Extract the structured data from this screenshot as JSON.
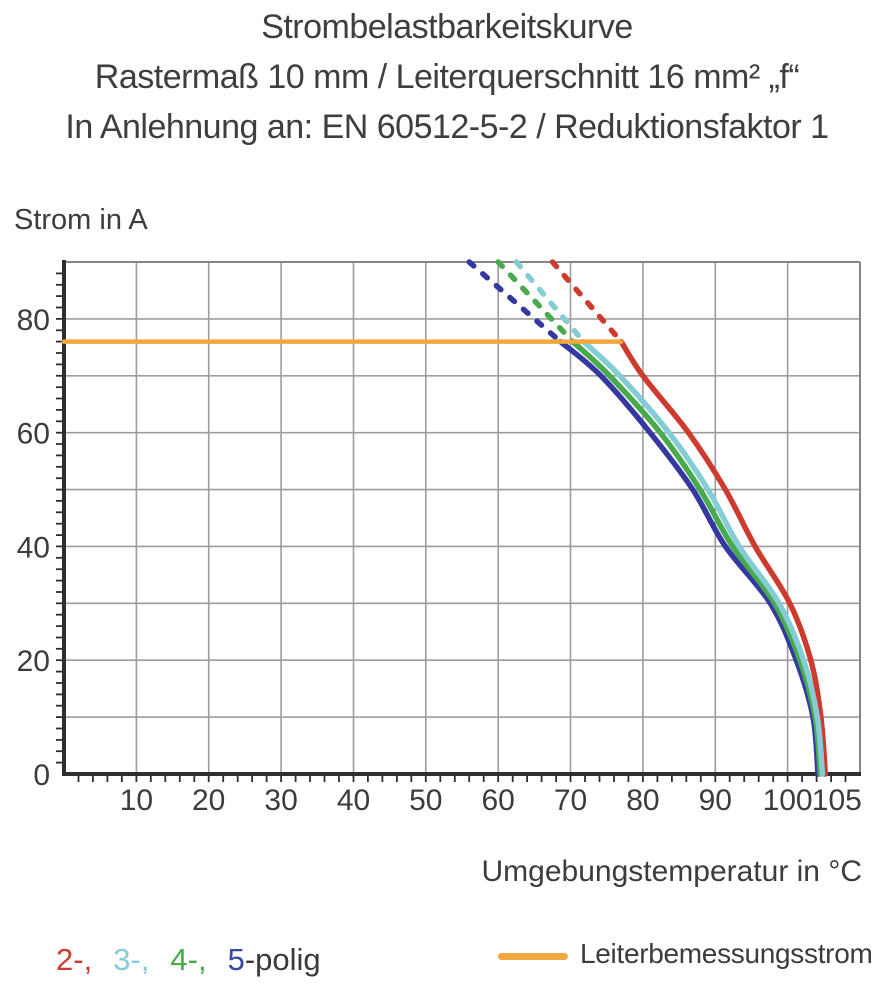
{
  "chart_data": {
    "type": "line",
    "title": "Strombelastbarkeitskurve",
    "subtitle_lines": [
      "Rastermaß 10 mm / Leiterquerschnitt 16 mm² „f“",
      "In Anlehnung an: EN 60512-5-2 / Reduktionsfaktor 1"
    ],
    "xlabel": "Umgebungstemperatur in °C",
    "ylabel": "Strom in A",
    "xlim": [
      0,
      110
    ],
    "ylim": [
      0,
      90
    ],
    "grid_step": 10,
    "minor_tick_step": 2,
    "grid_on": true,
    "x_ticks": [
      {
        "v": 10,
        "label": "10"
      },
      {
        "v": 20,
        "label": "20"
      },
      {
        "v": 30,
        "label": "30"
      },
      {
        "v": 40,
        "label": "40"
      },
      {
        "v": 50,
        "label": "50"
      },
      {
        "v": 60,
        "label": "60"
      },
      {
        "v": 70,
        "label": "70"
      },
      {
        "v": 80,
        "label": "80"
      },
      {
        "v": 90,
        "label": "90"
      },
      {
        "v": 100,
        "label": "100"
      },
      {
        "v": 105,
        "label": "105",
        "label_offset": 13
      }
    ],
    "y_ticks": [
      {
        "v": 0,
        "label": "0"
      },
      {
        "v": 20,
        "label": "20"
      },
      {
        "v": 40,
        "label": "40"
      },
      {
        "v": 60,
        "label": "60"
      },
      {
        "v": 80,
        "label": "80"
      }
    ],
    "threshold": {
      "label": "Leiterbemessungsstrom",
      "value_a": 76,
      "ends_at_c": 77.0,
      "color": "#f0a73f"
    },
    "dash_above_a": 76,
    "series": [
      {
        "name": "2-polig",
        "color": "#ce3b2e",
        "points_c_a": [
          [
            67.5,
            90
          ],
          [
            77.0,
            76
          ],
          [
            80.0,
            70
          ],
          [
            86.3,
            60
          ],
          [
            91.4,
            50
          ],
          [
            95.5,
            40
          ],
          [
            100.3,
            30
          ],
          [
            103.2,
            20
          ],
          [
            104.6,
            10
          ],
          [
            105.2,
            0
          ]
        ]
      },
      {
        "name": "3-polig",
        "color": "#84cdd4",
        "points_c_a": [
          [
            62.5,
            90
          ],
          [
            71.8,
            76
          ],
          [
            76.8,
            70
          ],
          [
            83.6,
            60
          ],
          [
            89.0,
            50
          ],
          [
            93.3,
            40
          ],
          [
            98.8,
            30
          ],
          [
            102.2,
            20
          ],
          [
            104.1,
            10
          ],
          [
            104.8,
            0
          ]
        ]
      },
      {
        "name": "4-polig",
        "color": "#48a94d",
        "points_c_a": [
          [
            60.0,
            90
          ],
          [
            70.3,
            76
          ],
          [
            75.4,
            70
          ],
          [
            82.4,
            60
          ],
          [
            87.9,
            50
          ],
          [
            92.4,
            40
          ],
          [
            98.2,
            30
          ],
          [
            101.7,
            20
          ],
          [
            103.8,
            10
          ],
          [
            104.5,
            0
          ]
        ]
      },
      {
        "name": "5-polig",
        "color": "#3438a0",
        "points_c_a": [
          [
            56.0,
            90
          ],
          [
            68.6,
            76
          ],
          [
            74.2,
            70
          ],
          [
            81.0,
            60
          ],
          [
            86.9,
            50
          ],
          [
            91.4,
            40
          ],
          [
            97.6,
            30
          ],
          [
            101.2,
            20
          ],
          [
            103.5,
            10
          ],
          [
            104.2,
            0
          ]
        ]
      }
    ],
    "colors": {
      "grid": "#9d9d9d",
      "frame": "#868686",
      "axis": "#2e2e2e",
      "tick_text": "#3c3c3c"
    }
  },
  "legend": {
    "pole_items": [
      {
        "text": "2-,",
        "color": "#ce3b2e"
      },
      {
        "text": "3-,",
        "color": "#84cdd4"
      },
      {
        "text": "4-,",
        "color": "#48a94d"
      },
      {
        "text": "5",
        "color": "#3448a5"
      }
    ],
    "pole_suffix": "-polig",
    "suffix_color": "#3a3a3a",
    "threshold_label": "Leiterbemessungsstrom",
    "threshold_color": "#f0a73f"
  }
}
